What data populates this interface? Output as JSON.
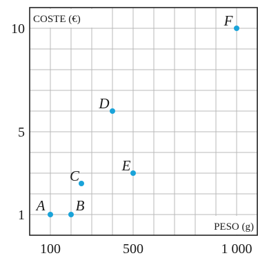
{
  "chart_data": {
    "type": "scatter",
    "xlabel": "PESO (g)",
    "ylabel": "COSTE (€)",
    "x_ticks": [
      "100",
      "500",
      "1 000"
    ],
    "y_ticks": [
      "1",
      "5",
      "10"
    ],
    "xlim": [
      0,
      1100
    ],
    "ylim": [
      0,
      11
    ],
    "grid": true,
    "point_color": "#1aa3d9",
    "points": [
      {
        "label": "A",
        "x": 100,
        "y": 1
      },
      {
        "label": "B",
        "x": 200,
        "y": 1
      },
      {
        "label": "C",
        "x": 250,
        "y": 2.5
      },
      {
        "label": "D",
        "x": 400,
        "y": 6
      },
      {
        "label": "E",
        "x": 500,
        "y": 3
      },
      {
        "label": "F",
        "x": 1000,
        "y": 10
      }
    ]
  }
}
